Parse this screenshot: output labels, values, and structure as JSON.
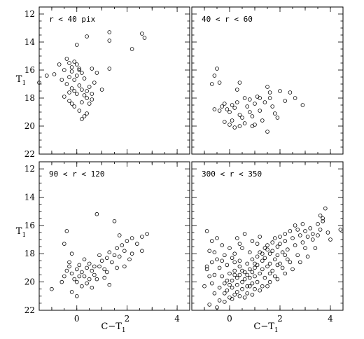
{
  "figure": {
    "x_axis_label": "C−T",
    "x_axis_subscript": "1",
    "y_axis_label": "T",
    "y_axis_subscript": "1"
  },
  "chart_data": [
    {
      "type": "scatter",
      "panel_label": "r < 40 pix",
      "xlim": [
        -1.5,
        4.5
      ],
      "ylim": [
        22,
        11.5
      ],
      "x_ticks": [
        0,
        2,
        4
      ],
      "y_ticks": [
        12,
        14,
        16,
        18,
        20,
        22
      ],
      "points": [
        [
          1.3,
          13.3
        ],
        [
          1.3,
          13.9
        ],
        [
          2.6,
          13.4
        ],
        [
          2.7,
          13.7
        ],
        [
          2.2,
          14.5
        ],
        [
          0.4,
          13.6
        ],
        [
          -1.2,
          16.4
        ],
        [
          -1.5,
          16.9
        ],
        [
          -0.9,
          16.3
        ],
        [
          -0.4,
          15.2
        ],
        [
          -0.3,
          15.5
        ],
        [
          -0.2,
          15.8
        ],
        [
          -0.1,
          15.4
        ],
        [
          0.0,
          15.6
        ],
        [
          0.1,
          15.9
        ],
        [
          -0.2,
          16.1
        ],
        [
          0.2,
          16.2
        ],
        [
          -0.3,
          16.5
        ],
        [
          -0.1,
          16.7
        ],
        [
          0.0,
          16.4
        ],
        [
          0.3,
          16.6
        ],
        [
          -0.6,
          16.7
        ],
        [
          -0.4,
          17.0
        ],
        [
          0.1,
          17.1
        ],
        [
          -0.2,
          17.3
        ],
        [
          0.2,
          17.4
        ],
        [
          0.5,
          17.2
        ],
        [
          -0.1,
          17.5
        ],
        [
          0.0,
          17.7
        ],
        [
          0.3,
          17.8
        ],
        [
          -0.5,
          17.9
        ],
        [
          0.4,
          18.0
        ],
        [
          0.2,
          18.3
        ],
        [
          -0.2,
          18.4
        ],
        [
          0.6,
          18.1
        ],
        [
          0.7,
          16.9
        ],
        [
          0.8,
          16.2
        ],
        [
          1.0,
          17.4
        ],
        [
          0.4,
          19.1
        ],
        [
          0.3,
          19.3
        ],
        [
          0.2,
          19.5
        ],
        [
          -0.1,
          18.6
        ],
        [
          0.1,
          18.9
        ],
        [
          0.5,
          18.4
        ],
        [
          -0.3,
          18.2
        ],
        [
          0.6,
          15.9
        ],
        [
          1.3,
          15.9
        ],
        [
          -0.7,
          15.6
        ],
        [
          -0.5,
          16.0
        ],
        [
          0.0,
          14.2
        ],
        [
          0.1,
          16.0
        ],
        [
          0.4,
          17.5
        ],
        [
          -0.3,
          17.6
        ],
        [
          0.6,
          17.7
        ]
      ]
    },
    {
      "type": "scatter",
      "panel_label": "40 < r < 60",
      "xlim": [
        -1.5,
        4.5
      ],
      "ylim": [
        22,
        11.5
      ],
      "x_ticks": [
        0,
        2,
        4
      ],
      "y_ticks": [
        12,
        14,
        16,
        18,
        20,
        22
      ],
      "points": [
        [
          -0.5,
          15.9
        ],
        [
          -0.6,
          16.4
        ],
        [
          -0.4,
          16.9
        ],
        [
          -0.7,
          17.0
        ],
        [
          -0.6,
          18.8
        ],
        [
          -0.4,
          18.9
        ],
        [
          -0.3,
          18.6
        ],
        [
          -0.2,
          18.4
        ],
        [
          -0.1,
          18.8
        ],
        [
          0.0,
          19.0
        ],
        [
          0.1,
          18.5
        ],
        [
          0.2,
          18.7
        ],
        [
          0.3,
          18.3
        ],
        [
          0.4,
          19.2
        ],
        [
          0.5,
          19.4
        ],
        [
          0.1,
          19.6
        ],
        [
          0.0,
          19.9
        ],
        [
          0.2,
          20.1
        ],
        [
          0.4,
          20.0
        ],
        [
          0.6,
          18.0
        ],
        [
          0.7,
          18.6
        ],
        [
          0.8,
          19.0
        ],
        [
          0.9,
          19.3
        ],
        [
          1.0,
          18.4
        ],
        [
          1.1,
          17.9
        ],
        [
          1.2,
          18.9
        ],
        [
          1.3,
          19.6
        ],
        [
          1.4,
          18.3
        ],
        [
          1.5,
          17.2
        ],
        [
          1.6,
          17.6
        ],
        [
          1.7,
          18.6
        ],
        [
          1.8,
          19.1
        ],
        [
          2.0,
          17.5
        ],
        [
          2.2,
          18.2
        ],
        [
          2.6,
          18.0
        ],
        [
          2.9,
          18.5
        ],
        [
          2.4,
          17.6
        ],
        [
          1.9,
          19.4
        ],
        [
          1.5,
          20.4
        ],
        [
          0.9,
          20.0
        ],
        [
          0.3,
          17.4
        ],
        [
          0.4,
          16.9
        ],
        [
          0.8,
          18.1
        ],
        [
          1.2,
          18.0
        ],
        [
          1.6,
          18.0
        ],
        [
          -0.2,
          19.7
        ],
        [
          0.6,
          19.8
        ],
        [
          1.0,
          19.9
        ]
      ]
    },
    {
      "type": "scatter",
      "panel_label": "90 < r < 120",
      "xlim": [
        -1.5,
        4.5
      ],
      "ylim": [
        22,
        11.5
      ],
      "x_ticks": [
        0,
        2,
        4
      ],
      "y_ticks": [
        12,
        14,
        16,
        18,
        20,
        22
      ],
      "points": [
        [
          -1.0,
          20.5
        ],
        [
          -0.6,
          20.0
        ],
        [
          -0.5,
          19.6
        ],
        [
          -0.4,
          19.2
        ],
        [
          -0.3,
          18.9
        ],
        [
          -0.2,
          19.4
        ],
        [
          -0.1,
          19.8
        ],
        [
          0.0,
          19.1
        ],
        [
          0.1,
          18.8
        ],
        [
          0.2,
          19.3
        ],
        [
          0.3,
          19.6
        ],
        [
          0.4,
          19.0
        ],
        [
          0.5,
          18.7
        ],
        [
          0.6,
          19.2
        ],
        [
          0.7,
          19.5
        ],
        [
          0.8,
          19.8
        ],
        [
          0.9,
          18.9
        ],
        [
          1.0,
          18.5
        ],
        [
          1.1,
          19.1
        ],
        [
          1.2,
          18.3
        ],
        [
          1.3,
          17.9
        ],
        [
          1.4,
          18.6
        ],
        [
          1.5,
          18.1
        ],
        [
          1.6,
          17.6
        ],
        [
          1.7,
          18.2
        ],
        [
          1.8,
          17.4
        ],
        [
          1.9,
          17.8
        ],
        [
          2.0,
          17.1
        ],
        [
          2.2,
          16.9
        ],
        [
          2.4,
          17.3
        ],
        [
          2.6,
          16.8
        ],
        [
          2.8,
          16.6
        ],
        [
          -0.5,
          17.3
        ],
        [
          -0.4,
          16.4
        ],
        [
          -0.2,
          18.0
        ],
        [
          0.0,
          20.0
        ],
        [
          0.2,
          20.3
        ],
        [
          0.4,
          20.1
        ],
        [
          0.6,
          20.4
        ],
        [
          0.8,
          15.2
        ],
        [
          1.5,
          15.7
        ],
        [
          2.6,
          17.8
        ],
        [
          2.1,
          18.4
        ],
        [
          1.9,
          18.9
        ],
        [
          1.1,
          19.7
        ],
        [
          1.3,
          20.2
        ],
        [
          0.0,
          21.0
        ],
        [
          -0.2,
          20.7
        ],
        [
          0.3,
          18.4
        ],
        [
          0.5,
          19.8
        ],
        [
          1.7,
          16.7
        ],
        [
          2.2,
          18.0
        ],
        [
          0.9,
          18.1
        ],
        [
          -0.3,
          18.6
        ],
        [
          0.1,
          19.6
        ],
        [
          0.7,
          18.9
        ],
        [
          1.2,
          19.3
        ],
        [
          1.6,
          19.0
        ]
      ]
    },
    {
      "type": "scatter",
      "panel_label": "300 < r < 350",
      "xlim": [
        -1.5,
        4.5
      ],
      "ylim": [
        22,
        11.5
      ],
      "x_ticks": [
        0,
        2,
        4
      ],
      "y_ticks": [
        12,
        14,
        16,
        18,
        20,
        22
      ],
      "points": [
        [
          -0.9,
          16.4
        ],
        [
          -0.7,
          17.1
        ],
        [
          -0.6,
          17.9
        ],
        [
          -0.5,
          18.4
        ],
        [
          -0.4,
          19.0
        ],
        [
          -0.3,
          19.6
        ],
        [
          -0.2,
          20.1
        ],
        [
          -0.1,
          20.6
        ],
        [
          0.0,
          21.1
        ],
        [
          -0.8,
          21.6
        ],
        [
          -1.0,
          20.3
        ],
        [
          -0.9,
          19.1
        ],
        [
          -0.7,
          18.6
        ],
        [
          -0.6,
          20.8
        ],
        [
          -0.4,
          21.3
        ],
        [
          -0.3,
          17.4
        ],
        [
          -0.2,
          18.1
        ],
        [
          -0.1,
          18.8
        ],
        [
          0.0,
          19.4
        ],
        [
          0.1,
          19.9
        ],
        [
          0.1,
          20.4
        ],
        [
          0.2,
          18.6
        ],
        [
          0.2,
          19.2
        ],
        [
          0.3,
          19.7
        ],
        [
          0.3,
          20.2
        ],
        [
          0.4,
          18.9
        ],
        [
          0.4,
          19.5
        ],
        [
          0.5,
          20.0
        ],
        [
          0.5,
          20.5
        ],
        [
          0.6,
          19.3
        ],
        [
          0.6,
          19.8
        ],
        [
          0.7,
          18.7
        ],
        [
          0.7,
          20.3
        ],
        [
          0.8,
          19.1
        ],
        [
          0.8,
          19.7
        ],
        [
          0.9,
          20.1
        ],
        [
          0.9,
          18.4
        ],
        [
          1.0,
          19.0
        ],
        [
          1.0,
          19.6
        ],
        [
          1.1,
          18.2
        ],
        [
          1.1,
          18.8
        ],
        [
          1.2,
          19.4
        ],
        [
          1.2,
          17.9
        ],
        [
          1.3,
          18.5
        ],
        [
          1.3,
          19.1
        ],
        [
          1.4,
          17.6
        ],
        [
          1.4,
          18.3
        ],
        [
          1.5,
          18.9
        ],
        [
          1.5,
          17.4
        ],
        [
          1.6,
          18.0
        ],
        [
          1.6,
          18.7
        ],
        [
          1.7,
          17.2
        ],
        [
          1.7,
          17.8
        ],
        [
          1.8,
          18.4
        ],
        [
          1.8,
          16.9
        ],
        [
          1.9,
          17.5
        ],
        [
          1.9,
          18.1
        ],
        [
          2.0,
          16.8
        ],
        [
          2.0,
          17.3
        ],
        [
          2.1,
          17.9
        ],
        [
          2.2,
          16.6
        ],
        [
          2.2,
          17.1
        ],
        [
          2.3,
          17.7
        ],
        [
          2.4,
          16.4
        ],
        [
          2.5,
          16.9
        ],
        [
          2.6,
          17.4
        ],
        [
          2.7,
          16.3
        ],
        [
          2.8,
          16.7
        ],
        [
          2.9,
          17.2
        ],
        [
          3.0,
          16.4
        ],
        [
          3.1,
          16.8
        ],
        [
          3.2,
          16.2
        ],
        [
          3.3,
          16.6
        ],
        [
          3.5,
          15.9
        ],
        [
          3.6,
          16.3
        ],
        [
          3.7,
          15.5
        ],
        [
          3.8,
          14.8
        ],
        [
          4.4,
          16.3
        ],
        [
          3.4,
          17.6
        ],
        [
          3.1,
          18.2
        ],
        [
          2.8,
          18.6
        ],
        [
          2.5,
          19.1
        ],
        [
          2.2,
          19.4
        ],
        [
          1.9,
          19.8
        ],
        [
          1.6,
          20.0
        ],
        [
          1.3,
          20.3
        ],
        [
          1.0,
          20.5
        ],
        [
          0.7,
          20.8
        ],
        [
          0.4,
          21.0
        ],
        [
          0.1,
          21.2
        ],
        [
          -0.2,
          21.4
        ],
        [
          -0.5,
          21.8
        ],
        [
          0.3,
          16.9
        ],
        [
          0.6,
          16.6
        ],
        [
          0.9,
          17.1
        ],
        [
          1.2,
          16.8
        ],
        [
          0.5,
          17.6
        ],
        [
          0.8,
          17.9
        ],
        [
          1.1,
          17.3
        ],
        [
          -0.5,
          16.9
        ],
        [
          -0.8,
          17.8
        ],
        [
          -0.9,
          18.9
        ],
        [
          -0.6,
          19.5
        ],
        [
          0.0,
          17.6
        ],
        [
          0.2,
          18.0
        ],
        [
          0.4,
          17.3
        ],
        [
          3.7,
          15.7
        ],
        [
          3.6,
          15.3
        ],
        [
          2.9,
          15.9
        ],
        [
          2.6,
          16.0
        ],
        [
          3.9,
          16.5
        ],
        [
          4.0,
          17.0
        ],
        [
          2.0,
          18.7
        ],
        [
          2.3,
          18.4
        ],
        [
          1.7,
          19.2
        ],
        [
          1.4,
          19.7
        ],
        [
          1.1,
          20.0
        ],
        [
          0.8,
          20.3
        ],
        [
          0.5,
          19.2
        ],
        [
          0.2,
          19.5
        ],
        [
          -0.1,
          19.9
        ],
        [
          -0.2,
          20.8
        ],
        [
          0.0,
          20.2
        ],
        [
          0.3,
          20.7
        ],
        [
          0.6,
          21.1
        ],
        [
          0.9,
          20.9
        ],
        [
          1.2,
          20.6
        ],
        [
          1.5,
          20.3
        ],
        [
          1.8,
          19.6
        ],
        [
          2.1,
          19.0
        ],
        [
          2.4,
          18.6
        ],
        [
          2.7,
          18.1
        ],
        [
          3.0,
          17.6
        ],
        [
          3.3,
          17.0
        ],
        [
          3.5,
          16.7
        ],
        [
          0.7,
          19.5
        ],
        [
          0.9,
          19.3
        ],
        [
          1.0,
          18.7
        ],
        [
          1.3,
          18.0
        ],
        [
          1.5,
          17.7
        ],
        [
          1.6,
          19.4
        ],
        [
          1.9,
          18.8
        ],
        [
          2.2,
          18.1
        ],
        [
          0.4,
          18.5
        ],
        [
          0.1,
          18.3
        ],
        [
          -0.3,
          18.5
        ],
        [
          -0.4,
          20.4
        ],
        [
          -0.7,
          20.1
        ],
        [
          -0.8,
          19.6
        ],
        [
          0.2,
          20.9
        ]
      ]
    }
  ]
}
